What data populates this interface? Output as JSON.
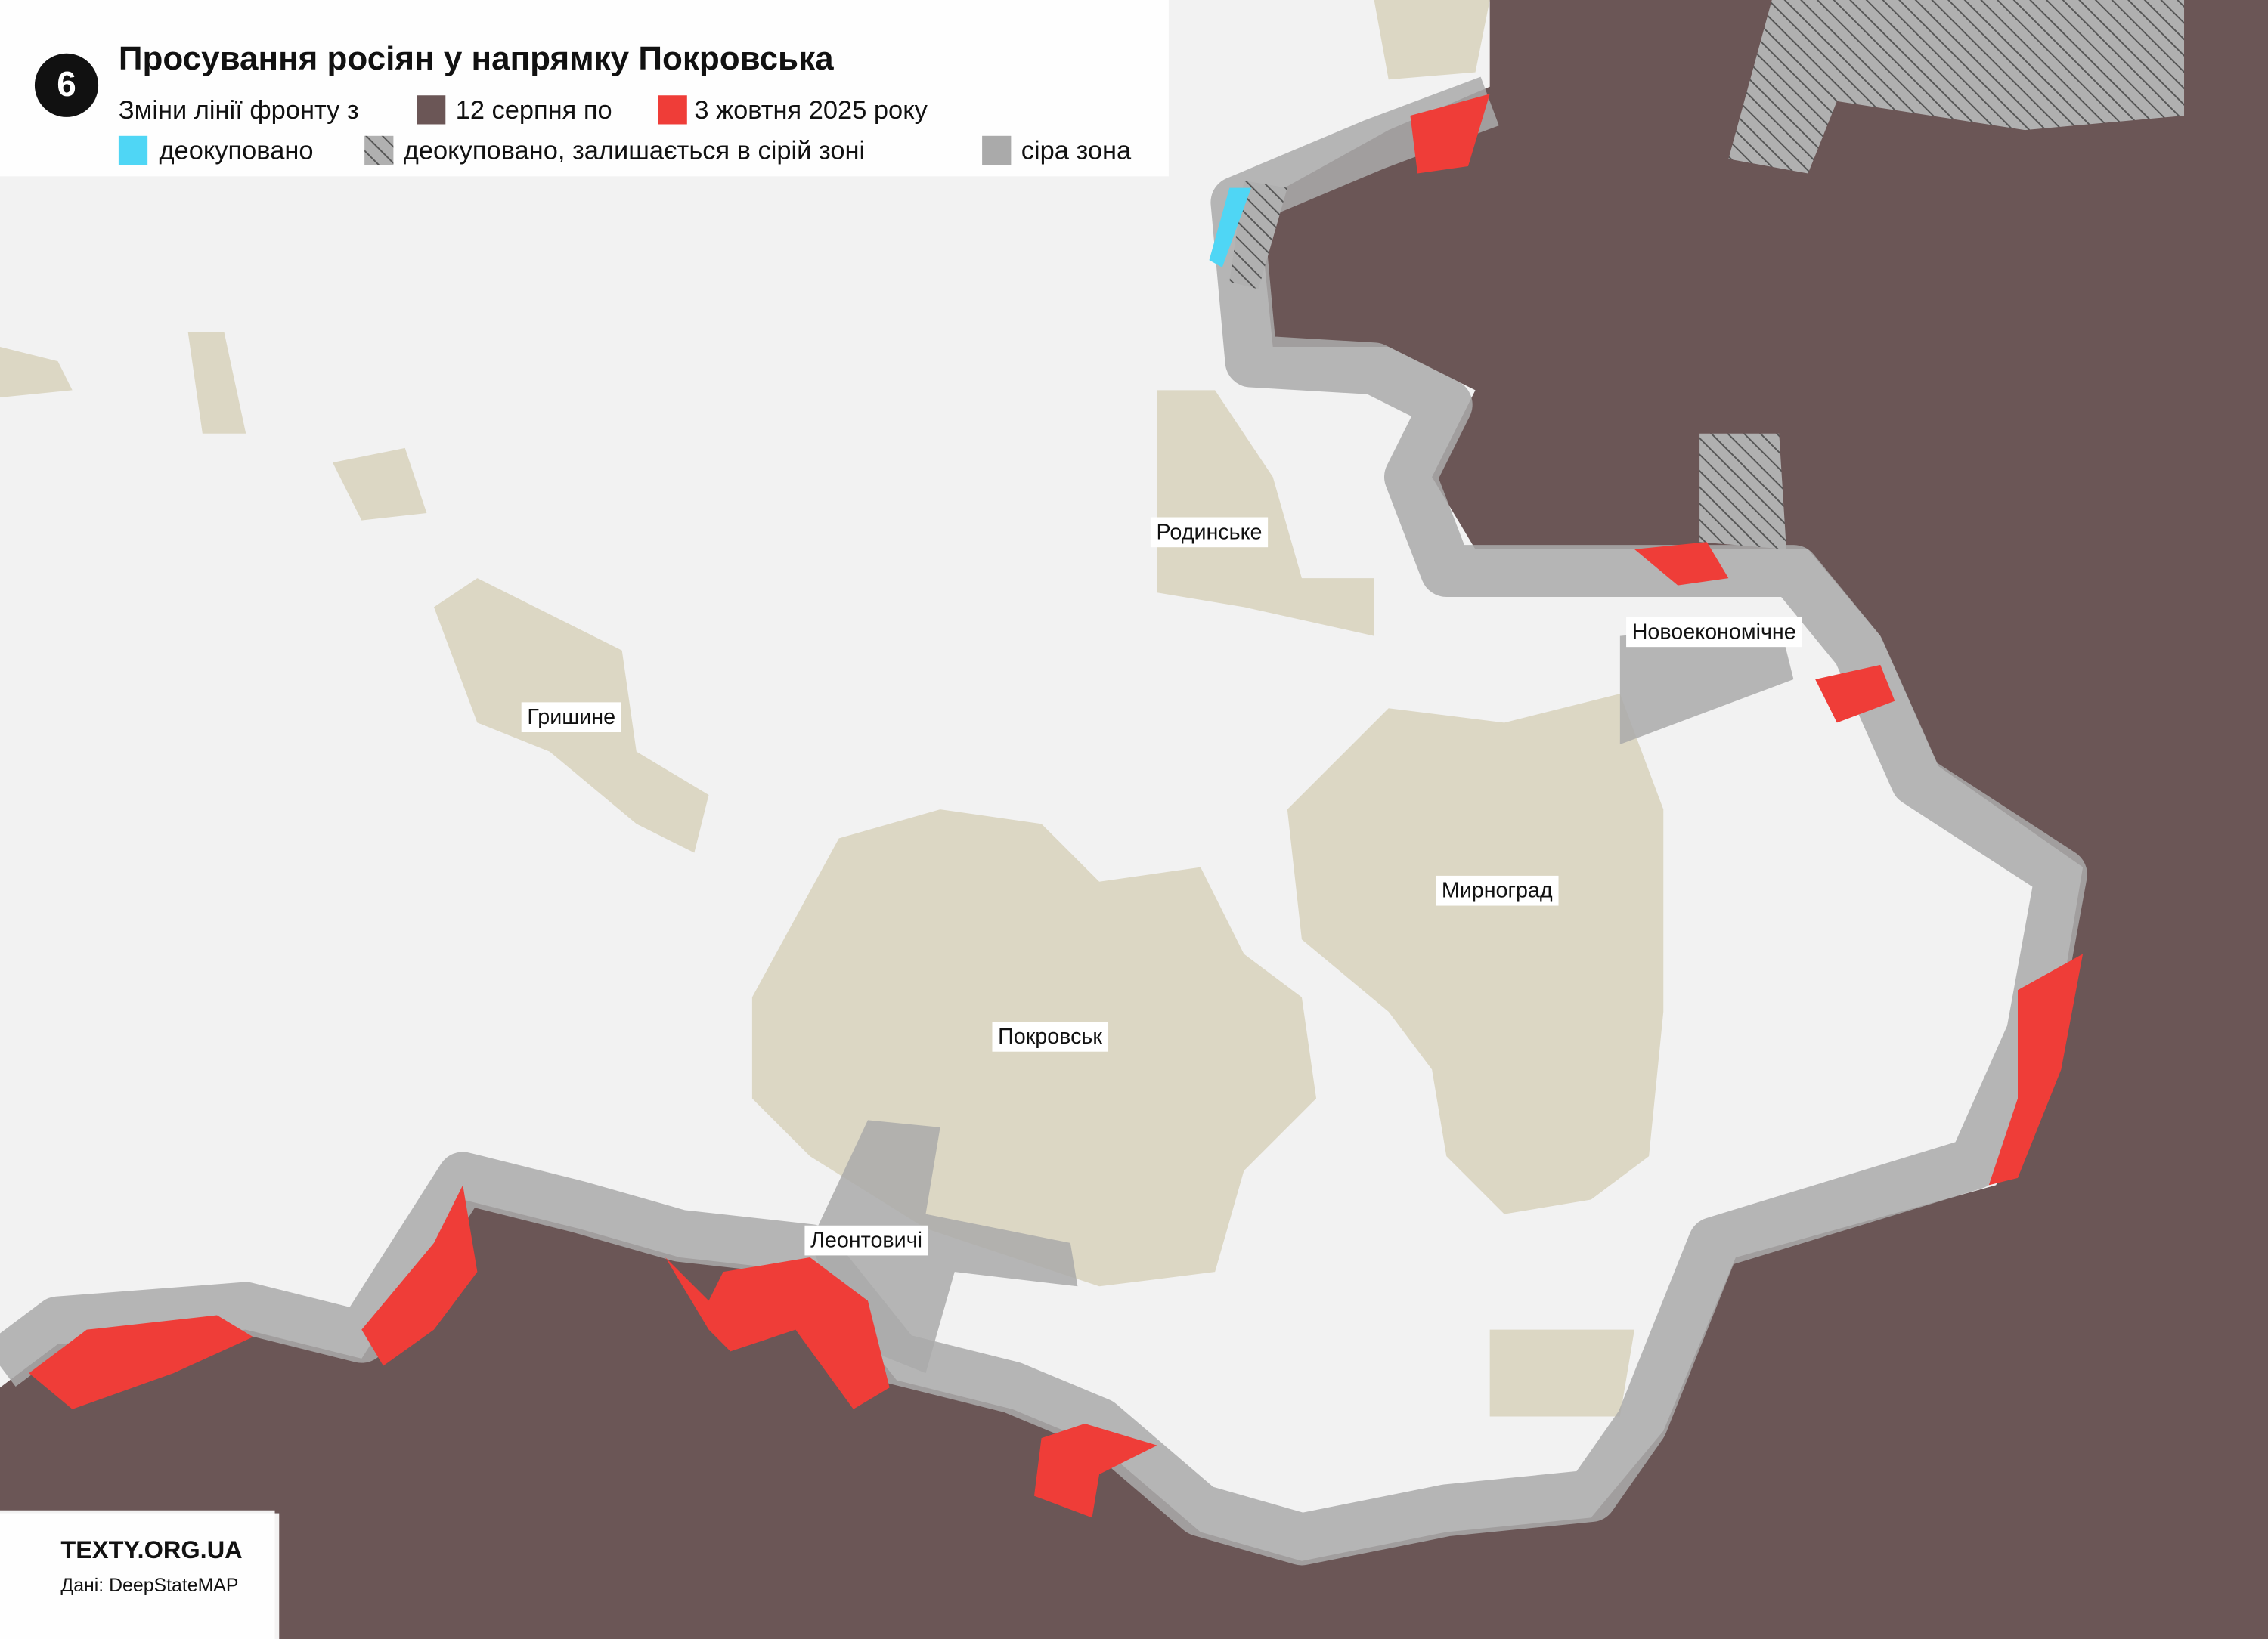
{
  "header": {
    "badge": "6",
    "title": "Просування росіян у напрямку Покровська",
    "legend": {
      "intro": "Зміни лінії фронту з",
      "from": "12 серпня по",
      "to": "3 жовтня 2025 року",
      "liberated": "деокуповано",
      "liberated_grey": "деокуповано, залишається в сірій зоні",
      "grey": "сіра зона"
    }
  },
  "places": [
    "Родинське",
    "Гришине",
    "Новоекономічне",
    "Мирноград",
    "Покровськ",
    "Леонтовичі"
  ],
  "footer": {
    "brand": "TEXTY.ORG.UA",
    "source": "Дані: DeepStateMAP"
  }
}
